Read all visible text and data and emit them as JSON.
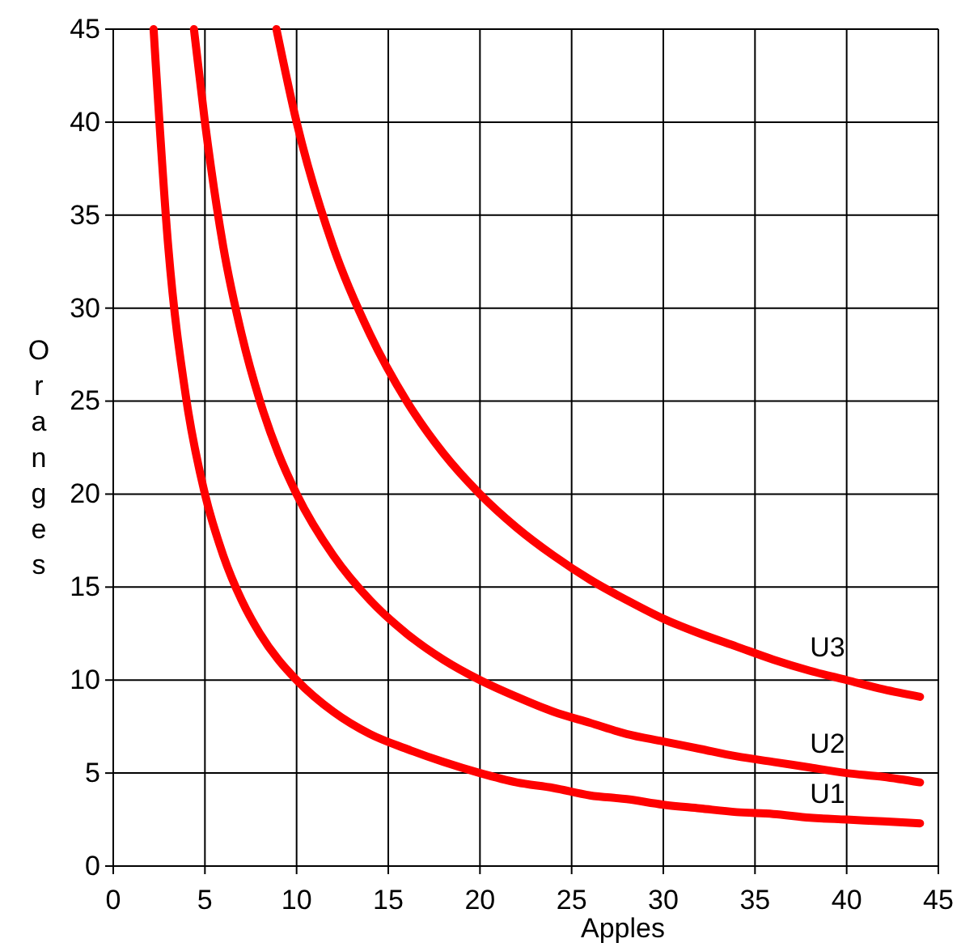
{
  "chart_data": {
    "type": "line",
    "xlabel": "Apples",
    "ylabel": "Oranges",
    "xlim": [
      0,
      45
    ],
    "ylim": [
      0,
      45
    ],
    "xticks": [
      0,
      5,
      10,
      15,
      20,
      25,
      30,
      35,
      40,
      45
    ],
    "yticks": [
      0,
      5,
      10,
      15,
      20,
      25,
      30,
      35,
      40,
      45
    ],
    "grid": true,
    "marker": "none",
    "line_style": "solid",
    "series": [
      {
        "name": "U1",
        "color": "#ff0000",
        "x": [
          2.2,
          3,
          4,
          5,
          6,
          7,
          8,
          9,
          10,
          12,
          14,
          16,
          18,
          20,
          22,
          24,
          26,
          28,
          30,
          32,
          34,
          36,
          38,
          40,
          42,
          44
        ],
        "values": [
          45,
          33.3,
          25,
          20,
          16.7,
          14.3,
          12.5,
          11.1,
          10,
          8.3,
          7.1,
          6.3,
          5.6,
          5,
          4.5,
          4.2,
          3.8,
          3.6,
          3.3,
          3.1,
          2.9,
          2.8,
          2.6,
          2.5,
          2.4,
          2.3
        ]
      },
      {
        "name": "U2",
        "color": "#ff0000",
        "x": [
          4.4,
          5,
          6,
          7,
          8,
          9,
          10,
          12,
          14,
          16,
          18,
          20,
          22,
          24,
          26,
          28,
          30,
          32,
          34,
          36,
          38,
          40,
          42,
          44
        ],
        "values": [
          45,
          40,
          33.3,
          28.6,
          25,
          22.2,
          20,
          16.7,
          14.3,
          12.5,
          11.1,
          10,
          9.1,
          8.3,
          7.7,
          7.1,
          6.7,
          6.3,
          5.9,
          5.6,
          5.3,
          5,
          4.8,
          4.5
        ]
      },
      {
        "name": "U3",
        "color": "#ff0000",
        "x": [
          8.9,
          10,
          12,
          14,
          16,
          18,
          20,
          22,
          24,
          26,
          28,
          30,
          32,
          34,
          36,
          38,
          40,
          42,
          44
        ],
        "values": [
          45,
          40,
          33.3,
          28.6,
          25,
          22.2,
          20,
          18.2,
          16.7,
          15.4,
          14.3,
          13.3,
          12.5,
          11.8,
          11.1,
          10.5,
          10,
          9.5,
          9.1
        ]
      }
    ]
  }
}
